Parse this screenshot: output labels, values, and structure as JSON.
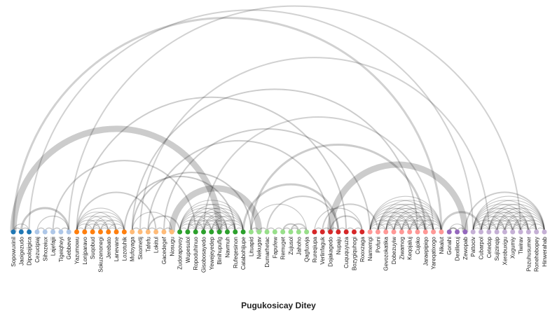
{
  "title": "Pugukosicay Ditey",
  "groups": [
    {
      "color": "#1f77b4",
      "nodes": [
        "Sopowuxinil",
        "Jaoigezudo",
        "Dipolojigica"
      ]
    },
    {
      "color": "#aec7e8",
      "nodes": [
        "Cezucipiaj",
        "Sihozeiux",
        "Lajefajii",
        "Tigeiqheyi",
        "Gebbeve"
      ]
    },
    {
      "color": "#ff7f0e",
      "nodes": [
        "Yazumowu",
        "Lonjparavo",
        "Suqobud",
        "Sokuzenonegi",
        "Jerebato",
        "Lanevane",
        "Lozotuhik"
      ]
    },
    {
      "color": "#ffbb78",
      "nodes": [
        "Mufoyaga",
        "Sixometij",
        "Tafefu",
        "Lokitul",
        "Gacedegef",
        "Nosugu"
      ]
    },
    {
      "color": "#2ca02c",
      "nodes": [
        "Zudorapovoy",
        "Wupesulol",
        "Ropoduhinuo",
        "Gisobosayedo",
        "Yewejeyedep",
        "Binihupufig",
        "Navmuh",
        "Rufeqesinon",
        "Catabohijupe"
      ]
    },
    {
      "color": "#98df8a",
      "nodes": [
        "Lituapid",
        "Nekugav",
        "Dumarhetac",
        "Fapufew",
        "Remuget",
        "Zujusol",
        "Jahoho",
        "Qagfuxvja"
      ]
    },
    {
      "color": "#d62728",
      "nodes": [
        "Rureqiupa",
        "Verlinfaguk",
        "Dojakagedo",
        "Nupaju",
        "Cuququyuza",
        "Bozygiquhogi",
        "Rooxzaga"
      ]
    },
    {
      "color": "#ff9896",
      "nodes": [
        "Namemgi",
        "Pofuni",
        "Gevozokatika",
        "Dobezuyiw",
        "Ziwamog",
        "Keqojaluj",
        "Cujoko",
        "Jaraepipiqo",
        "Yareqatixogo",
        "Nikalut"
      ]
    },
    {
      "color": "#9467bd",
      "nodes": [
        "Gonahi",
        "Dexillecuj",
        "Zewopab"
      ]
    },
    {
      "color": "#c5b0d5",
      "nodes": [
        "Pattociv",
        "Cubarpol",
        "Cetedop",
        "Sujizinqip",
        "Xerobuxigu",
        "Xugumiy",
        "Tiwirav",
        "Pozuhusumer",
        "Ronehebopey",
        "Hinwerahab"
      ]
    }
  ]
}
